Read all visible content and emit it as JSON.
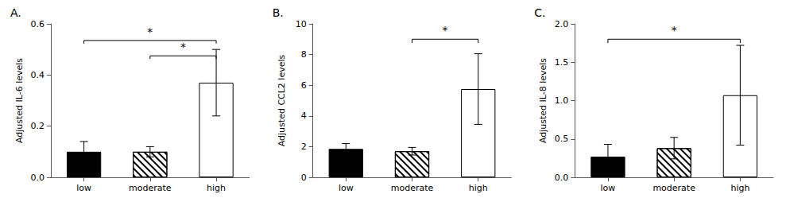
{
  "chart_data": [
    {
      "type": "bar",
      "title": "A.",
      "ylabel": "Adjusted IL-6 levels",
      "categories": [
        "low",
        "moderate",
        "high"
      ],
      "values": [
        0.1,
        0.1,
        0.37
      ],
      "errors": [
        0.04,
        0.02,
        0.13
      ],
      "colors": [
        "black",
        "white",
        "white"
      ],
      "ylim": [
        0,
        0.6
      ],
      "yticks": [
        {
          "value": 0.0,
          "label": "0.0"
        },
        0.2,
        0.4,
        0.6
      ],
      "grid": false,
      "annotations": [
        {
          "text": "*",
          "x1": "low",
          "x2": "high",
          "y": 0.535,
          "drop": 0.012,
          "label_y": 0.548
        },
        {
          "text": "*",
          "x1": "moderate",
          "x2": "high",
          "y": 0.475,
          "drop": 0.012,
          "label_y": 0.488
        }
      ]
    },
    {
      "type": "bar",
      "title": "B.",
      "ylabel": "Adjusted CCL2 levels",
      "categories": [
        "low",
        "moderate",
        "high"
      ],
      "values": [
        1.85,
        1.7,
        5.75
      ],
      "errors": [
        0.35,
        0.25,
        2.3
      ],
      "colors": [
        "black",
        "white",
        "white"
      ],
      "ylim": [
        0,
        10
      ],
      "yticks": [
        0,
        2,
        4,
        6,
        8,
        10
      ],
      "grid": false,
      "annotations": [
        {
          "text": "*",
          "x1": "moderate",
          "x2": "high",
          "y": 9.0,
          "drop": 0.25,
          "label_y": 9.2
        }
      ]
    },
    {
      "type": "bar",
      "title": "C.",
      "ylabel": "Adjusted IL-8 levels",
      "categories": [
        "low",
        "moderate",
        "high"
      ],
      "values": [
        0.27,
        0.38,
        1.07
      ],
      "errors": [
        0.16,
        0.14,
        0.65
      ],
      "colors": [
        "black",
        "white",
        "white"
      ],
      "ylim": [
        0,
        2.0
      ],
      "yticks": [
        {
          "value": 0.0,
          "label": "0.0"
        },
        0.5,
        {
          "value": 1.0,
          "label": "1.0"
        },
        1.5,
        {
          "value": 2.0,
          "label": "2.0"
        }
      ],
      "grid": false,
      "annotations": [
        {
          "text": "*",
          "x1": "low",
          "x2": "high",
          "y": 1.8,
          "drop": 0.05,
          "label_y": 1.84
        }
      ]
    }
  ]
}
